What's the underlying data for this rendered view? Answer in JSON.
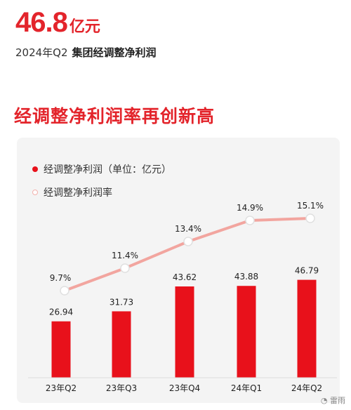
{
  "header": {
    "value": "46.8",
    "unit": "亿元",
    "period": "2024年Q2",
    "metric": "集团经调整净利润"
  },
  "section_title": "经调整净利润率再创新高",
  "legend": {
    "bars": "经调整净利润（单位：亿元）",
    "line": "经调整净利润率"
  },
  "watermark": "雷雨",
  "colors": {
    "accent": "#e3242b",
    "bar": "#e8111b",
    "line": "#f2a59f"
  },
  "chart_data": {
    "type": "bar+line",
    "categories": [
      "23年Q2",
      "23年Q3",
      "23年Q4",
      "24年Q1",
      "24年Q2"
    ],
    "series": [
      {
        "name": "经调整净利润（单位：亿元）",
        "type": "bar",
        "values": [
          26.94,
          31.73,
          43.62,
          43.88,
          46.79
        ],
        "labels": [
          "26.94",
          "31.73",
          "43.62",
          "43.88",
          "46.79"
        ]
      },
      {
        "name": "经调整净利润率",
        "type": "line",
        "values": [
          9.7,
          11.4,
          13.4,
          14.9,
          15.1
        ],
        "labels": [
          "9.7%",
          "11.4%",
          "13.4%",
          "14.9%",
          "15.1%"
        ]
      }
    ],
    "grid": false,
    "legend_position": "top-left"
  }
}
